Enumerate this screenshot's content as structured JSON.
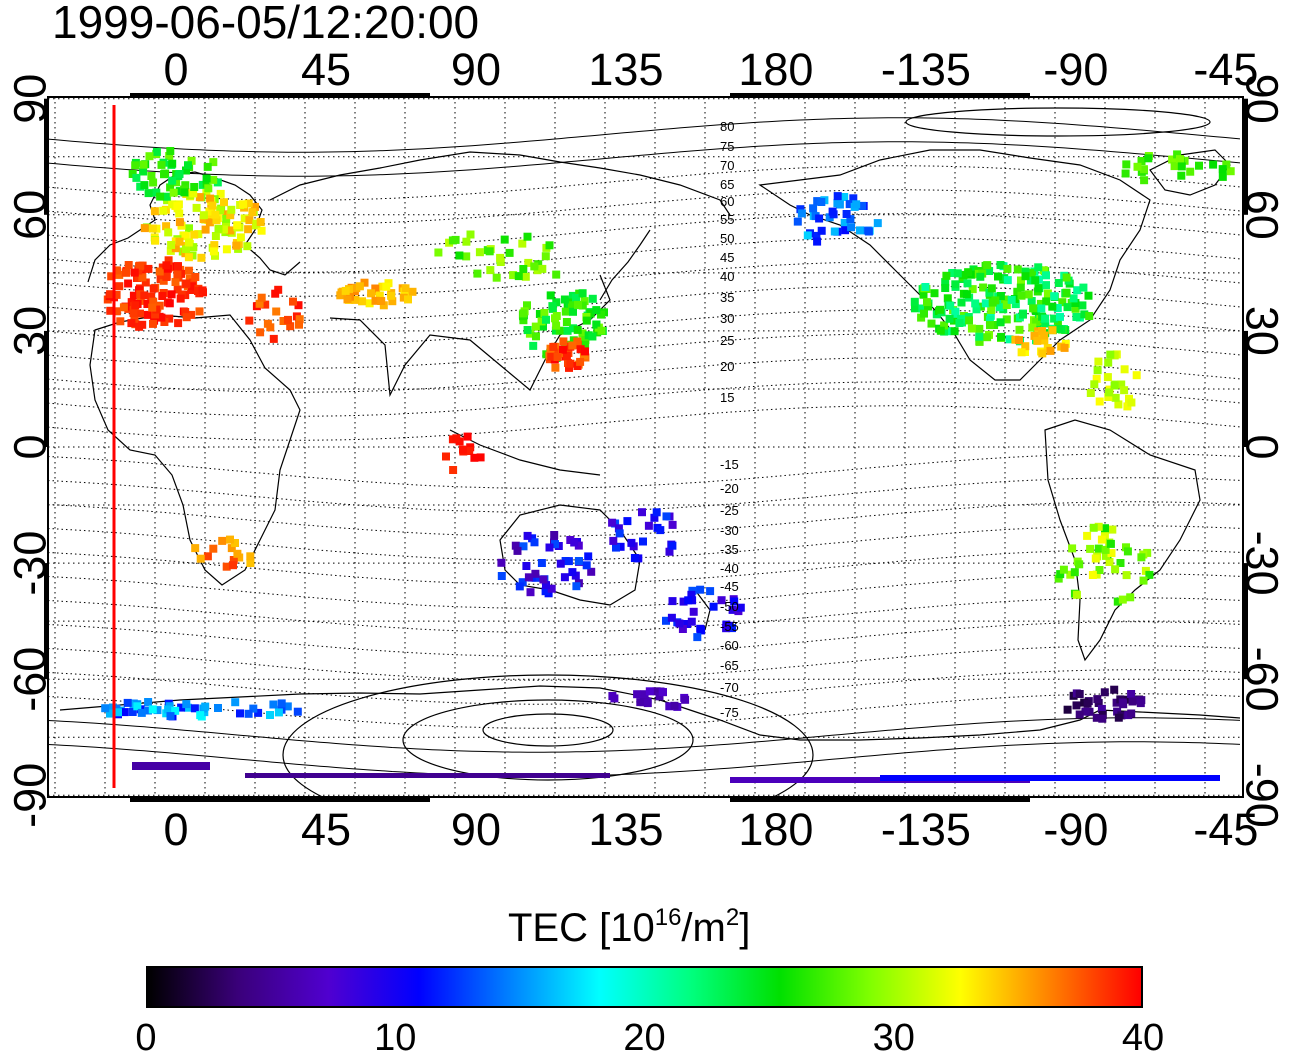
{
  "timestamp": "1999-06-05/12:20:00",
  "map": {
    "projection": "equirectangular",
    "center_longitude": 120,
    "x_axis": {
      "ticks": [
        "0",
        "45",
        "90",
        "135",
        "180",
        "-135",
        "-90",
        "-45"
      ],
      "tick_values": [
        0,
        45,
        90,
        135,
        180,
        -135,
        -90,
        -45
      ]
    },
    "y_axis": {
      "ticks": [
        "90",
        "60",
        "30",
        "0",
        "-30",
        "-60",
        "-90"
      ],
      "tick_values": [
        90,
        60,
        30,
        0,
        -30,
        -60,
        -90
      ]
    },
    "grid": true,
    "grid_step_degrees": 15,
    "terminator_line_color": "#ff0000",
    "contour_labels": [
      "80",
      "75",
      "70",
      "65",
      "60",
      "55",
      "50",
      "45",
      "40",
      "35",
      "30",
      "25",
      "20",
      "15",
      "-15",
      "-20",
      "-25",
      "-30",
      "-35",
      "-40",
      "-45",
      "-50",
      "-55",
      "-60",
      "-65",
      "-70",
      "-75"
    ]
  },
  "colorbar": {
    "title_main": "TEC  [10",
    "title_exp": "16",
    "title_unit": "/m",
    "title_unit_exp": "2",
    "title_close": "]",
    "min": 0,
    "max": 40,
    "tick_labels": [
      "0",
      "10",
      "20",
      "30",
      "40"
    ],
    "tick_values": [
      0,
      10,
      20,
      30,
      40
    ],
    "colors": [
      "#000000",
      "#3a007a",
      "#5000d0",
      "#0000ff",
      "#0080ff",
      "#00ffff",
      "#00ff80",
      "#00e000",
      "#80ff00",
      "#ffff00",
      "#ff8000",
      "#ff0000"
    ]
  }
}
